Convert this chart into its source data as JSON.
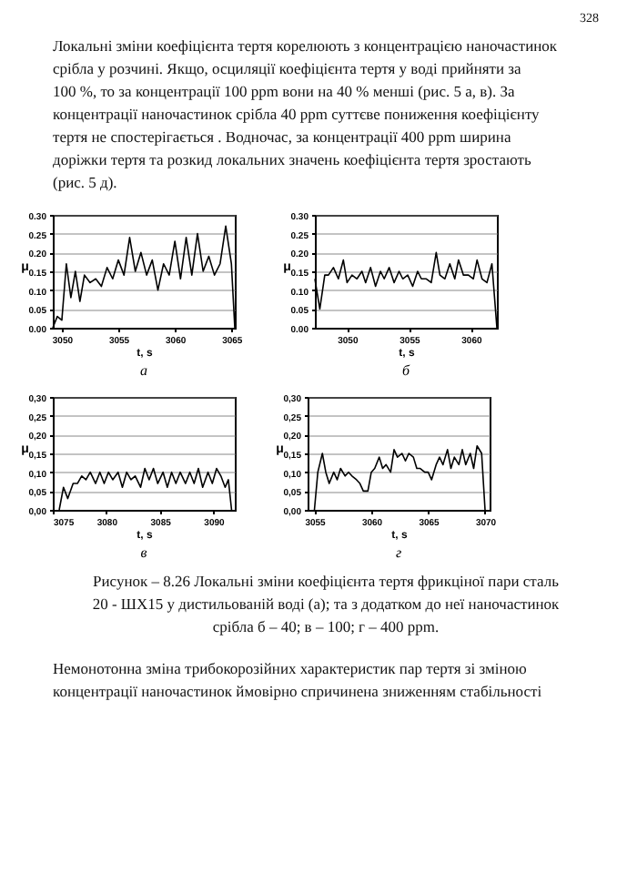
{
  "chart_data": [
    {
      "type": "line",
      "xlabel": "t, s",
      "ylabel": "μ",
      "annotations": [
        "а",
        "328",
        "Локальні зміни коефіцієнта тертя корелюють з концентрацією наночастинок срібла у розчині. Якщо, осциляції коефіцієнта тертя у воді прийняти за 100 %, то за концентрації 100 ppm вони на 40 % менші (рис. 5 а, в). За концентрації наночастинок срібла 40 ppm суттєве пониження коефіцієнту тертя не спостерігається . Водночас, за концентрації 400 ppm ширина доріжки тертя та розкид локальних значень коефіцієнта тертя зростають (рис. 5 д)."
      ],
      "x": [
        3049.2,
        3049.6,
        3050.0,
        3050.4,
        3050.8,
        3051.2,
        3051.6,
        3052.0,
        3052.5,
        3053.0,
        3053.5,
        3054.0,
        3054.5,
        3055.0,
        3055.5,
        3056.0,
        3056.5,
        3057.0,
        3057.5,
        3058.0,
        3058.5,
        3059.0,
        3059.5,
        3060.0,
        3060.5,
        3061.0,
        3061.5,
        3062.0,
        3062.5,
        3063.0,
        3063.5,
        3064.0,
        3064.5,
        3065.0,
        3065.3
      ],
      "series": [
        {
          "color": "#000000",
          "values": [
            0.0,
            0.03,
            0.02,
            0.17,
            0.08,
            0.15,
            0.07,
            0.14,
            0.12,
            0.13,
            0.11,
            0.16,
            0.13,
            0.18,
            0.14,
            0.24,
            0.15,
            0.2,
            0.14,
            0.18,
            0.1,
            0.17,
            0.14,
            0.23,
            0.13,
            0.24,
            0.14,
            0.25,
            0.15,
            0.19,
            0.14,
            0.17,
            0.27,
            0.17,
            0.0
          ]
        }
      ],
      "xlim": [
        3049.2,
        3065.3
      ],
      "xticks": [
        3050,
        3055,
        3060,
        3065
      ],
      "ylim": [
        0,
        0.3
      ],
      "yticks": [
        {
          "value": 0,
          "label": "0.00"
        },
        {
          "value": 0.05,
          "label": "0.05"
        },
        {
          "value": 0.1,
          "label": "0.10"
        },
        {
          "value": 0.15,
          "label": "0.15"
        },
        {
          "value": 0.2,
          "label": "0.20"
        },
        {
          "value": 0.25,
          "label": "0.25"
        },
        {
          "value": 0.3,
          "label": "0.30"
        }
      ],
      "grid": "y",
      "line_style": "solid",
      "marker": "none"
    },
    {
      "type": "line",
      "xlabel": "t, s",
      "ylabel": "μ",
      "annotations": [
        "б"
      ],
      "x": [
        3047.4,
        3047.8,
        3048.2,
        3048.5,
        3048.9,
        3049.3,
        3049.7,
        3050.0,
        3050.4,
        3050.8,
        3051.2,
        3051.5,
        3051.9,
        3052.3,
        3052.7,
        3053.0,
        3053.4,
        3053.8,
        3054.2,
        3054.5,
        3054.9,
        3055.3,
        3055.7,
        3056.0,
        3056.4,
        3056.8,
        3057.2,
        3057.5,
        3057.9,
        3058.3,
        3058.7,
        3059.0,
        3059.4,
        3059.8,
        3060.2,
        3060.5,
        3060.9,
        3061.3,
        3061.7,
        3062.1
      ],
      "series": [
        {
          "color": "#000000",
          "values": [
            0.13,
            0.05,
            0.14,
            0.14,
            0.16,
            0.13,
            0.18,
            0.12,
            0.14,
            0.13,
            0.15,
            0.12,
            0.16,
            0.11,
            0.15,
            0.13,
            0.16,
            0.12,
            0.15,
            0.13,
            0.14,
            0.11,
            0.15,
            0.13,
            0.13,
            0.12,
            0.2,
            0.14,
            0.13,
            0.17,
            0.13,
            0.18,
            0.14,
            0.14,
            0.13,
            0.18,
            0.13,
            0.12,
            0.17,
            0.0
          ]
        }
      ],
      "xlim": [
        3047.4,
        3062.1
      ],
      "xticks": [
        3050,
        3055,
        3060
      ],
      "ylim": [
        0,
        0.3
      ],
      "yticks": [
        {
          "value": 0,
          "label": "0.00"
        },
        {
          "value": 0.05,
          "label": "0.05"
        },
        {
          "value": 0.1,
          "label": "0.10"
        },
        {
          "value": 0.15,
          "label": "0.15"
        },
        {
          "value": 0.2,
          "label": "0.20"
        },
        {
          "value": 0.25,
          "label": "0.25"
        },
        {
          "value": 0.3,
          "label": "0.30"
        }
      ],
      "grid": "y",
      "line_style": "solid",
      "marker": "none"
    },
    {
      "type": "line",
      "xlabel": "t, s",
      "ylabel": "μ",
      "annotations": [
        "в"
      ],
      "x": [
        3075.6,
        3076.0,
        3076.4,
        3076.9,
        3077.3,
        3077.7,
        3078.1,
        3078.5,
        3079.0,
        3079.4,
        3079.8,
        3080.2,
        3080.6,
        3081.1,
        3081.5,
        3081.9,
        3082.3,
        3082.7,
        3083.2,
        3083.6,
        3084.0,
        3084.4,
        3084.8,
        3085.3,
        3085.7,
        3086.1,
        3086.5,
        3086.9,
        3087.4,
        3087.8,
        3088.2,
        3088.6,
        3089.0,
        3089.5,
        3089.9,
        3090.3,
        3090.7,
        3091.1,
        3091.4,
        3091.7
      ],
      "series": [
        {
          "color": "#000000",
          "values": [
            0.0,
            0.06,
            0.03,
            0.07,
            0.07,
            0.09,
            0.08,
            0.1,
            0.07,
            0.1,
            0.07,
            0.1,
            0.08,
            0.1,
            0.06,
            0.1,
            0.08,
            0.09,
            0.06,
            0.11,
            0.08,
            0.11,
            0.07,
            0.1,
            0.06,
            0.1,
            0.07,
            0.1,
            0.07,
            0.1,
            0.07,
            0.11,
            0.06,
            0.1,
            0.07,
            0.11,
            0.09,
            0.06,
            0.08,
            0.0
          ]
        }
      ],
      "xlim": [
        3075,
        3092
      ],
      "xticks": [
        3075,
        3080,
        3085,
        3090
      ],
      "ylim": [
        0,
        0.3
      ],
      "yticks": [
        {
          "value": 0,
          "label": "0,00"
        },
        {
          "value": 0.05,
          "label": "0,05"
        },
        {
          "value": 0.1,
          "label": "0,10"
        },
        {
          "value": 0.15,
          "label": "0,15"
        },
        {
          "value": 0.2,
          "label": "0,20"
        },
        {
          "value": 0.25,
          "label": "0,25"
        },
        {
          "value": 0.3,
          "label": "0,30"
        }
      ],
      "grid": "y",
      "line_style": "solid",
      "marker": "none"
    },
    {
      "type": "line",
      "xlabel": "t, s",
      "ylabel": "μ",
      "annotations": [
        "г",
        "Рисунок – 8.26 Локальні зміни коефіцієнта тертя фрикціної пари сталь 20 - ШХ15 у дистильованій воді (а); та з додатком до неї наночастинок срібла б – 40; в – 100; г – 400 ppm.",
        "Немонотонна зміна трибокорозійних характеристик пар тертя зі зміною концентрації наночастинок ймовірно спричинена зниженням стабільності"
      ],
      "x": [
        3055.0,
        3055.3,
        3055.7,
        3056.0,
        3056.3,
        3056.7,
        3057.0,
        3057.3,
        3057.7,
        3058.0,
        3058.3,
        3058.7,
        3059.0,
        3059.3,
        3059.7,
        3060.0,
        3060.3,
        3060.7,
        3061.0,
        3061.3,
        3061.7,
        3062.0,
        3062.3,
        3062.7,
        3063.0,
        3063.3,
        3063.7,
        3064.0,
        3064.3,
        3064.7,
        3065.0,
        3065.3,
        3065.7,
        3066.0,
        3066.3,
        3066.7,
        3067.0,
        3067.3,
        3067.7,
        3068.0,
        3068.3,
        3068.7,
        3069.0,
        3069.3,
        3069.7,
        3070.0
      ],
      "series": [
        {
          "color": "#000000",
          "values": [
            0.0,
            0.1,
            0.15,
            0.1,
            0.07,
            0.1,
            0.08,
            0.11,
            0.09,
            0.1,
            0.09,
            0.08,
            0.07,
            0.05,
            0.05,
            0.1,
            0.11,
            0.14,
            0.11,
            0.12,
            0.1,
            0.16,
            0.14,
            0.15,
            0.13,
            0.15,
            0.14,
            0.11,
            0.11,
            0.1,
            0.1,
            0.08,
            0.12,
            0.14,
            0.12,
            0.16,
            0.11,
            0.14,
            0.12,
            0.16,
            0.12,
            0.15,
            0.11,
            0.17,
            0.15,
            0.0
          ]
        }
      ],
      "xlim": [
        3054.4,
        3070.4
      ],
      "xticks": [
        3055,
        3060,
        3065,
        3070
      ],
      "ylim": [
        0,
        0.3
      ],
      "yticks": [
        {
          "value": 0,
          "label": "0,00"
        },
        {
          "value": 0.05,
          "label": "0,05"
        },
        {
          "value": 0.1,
          "label": "0,10"
        },
        {
          "value": 0.15,
          "label": "0,15"
        },
        {
          "value": 0.2,
          "label": "0,20"
        },
        {
          "value": 0.25,
          "label": "0,25"
        },
        {
          "value": 0.3,
          "label": "0,30"
        }
      ],
      "grid": "y",
      "line_style": "solid",
      "marker": "none"
    }
  ]
}
